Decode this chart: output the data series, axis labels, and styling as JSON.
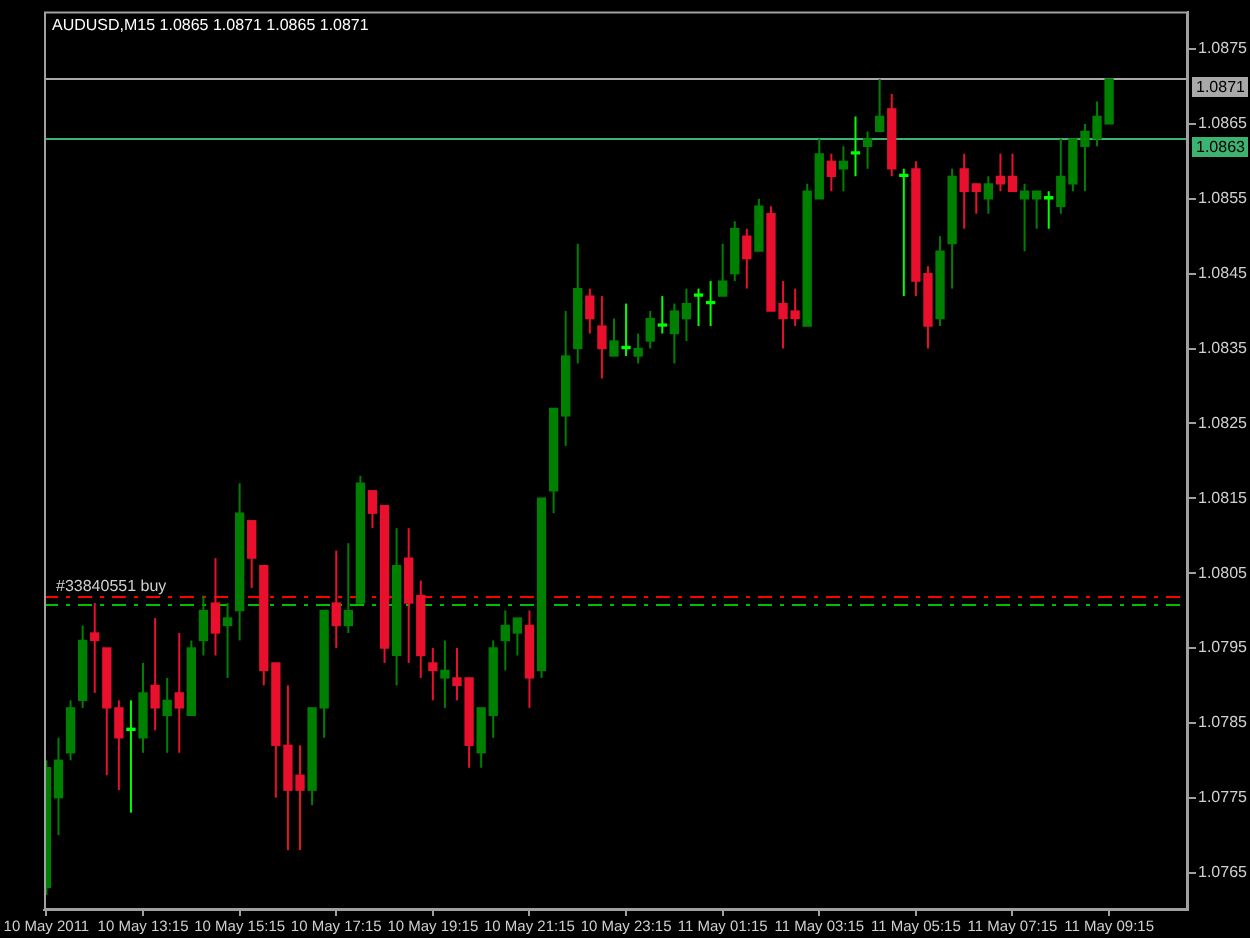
{
  "chart_data": {
    "type": "candlestick",
    "title": "AUDUSD,M15 1.0865 1.0871 1.0865 1.0871",
    "x": [
      "2011-05-10T11:15",
      "2011-05-10T11:30",
      "2011-05-10T11:45",
      "2011-05-10T12:00",
      "2011-05-10T12:15",
      "2011-05-10T12:30",
      "2011-05-10T12:45",
      "2011-05-10T13:00",
      "2011-05-10T13:15",
      "2011-05-10T13:30",
      "2011-05-10T13:45",
      "2011-05-10T14:00",
      "2011-05-10T14:15",
      "2011-05-10T14:30",
      "2011-05-10T14:45",
      "2011-05-10T15:00",
      "2011-05-10T15:15",
      "2011-05-10T15:30",
      "2011-05-10T15:45",
      "2011-05-10T16:00",
      "2011-05-10T16:15",
      "2011-05-10T16:30",
      "2011-05-10T16:45",
      "2011-05-10T17:00",
      "2011-05-10T17:15",
      "2011-05-10T17:30",
      "2011-05-10T17:45",
      "2011-05-10T18:00",
      "2011-05-10T18:15",
      "2011-05-10T18:30",
      "2011-05-10T18:45",
      "2011-05-10T19:00",
      "2011-05-10T19:15",
      "2011-05-10T19:30",
      "2011-05-10T19:45",
      "2011-05-10T20:00",
      "2011-05-10T20:15",
      "2011-05-10T20:30",
      "2011-05-10T20:45",
      "2011-05-10T21:00",
      "2011-05-10T21:15",
      "2011-05-10T21:30",
      "2011-05-10T21:45",
      "2011-05-10T22:00",
      "2011-05-10T22:15",
      "2011-05-10T22:30",
      "2011-05-10T22:45",
      "2011-05-10T23:00",
      "2011-05-10T23:15",
      "2011-05-10T23:30",
      "2011-05-10T23:45",
      "2011-05-11T00:00",
      "2011-05-11T00:15",
      "2011-05-11T00:30",
      "2011-05-11T00:45",
      "2011-05-11T01:00",
      "2011-05-11T01:15",
      "2011-05-11T01:30",
      "2011-05-11T01:45",
      "2011-05-11T02:00",
      "2011-05-11T02:15",
      "2011-05-11T02:30",
      "2011-05-11T02:45",
      "2011-05-11T03:00",
      "2011-05-11T03:15",
      "2011-05-11T03:30",
      "2011-05-11T03:45",
      "2011-05-11T04:00",
      "2011-05-11T04:15",
      "2011-05-11T04:30",
      "2011-05-11T04:45",
      "2011-05-11T05:00",
      "2011-05-11T05:15",
      "2011-05-11T05:30",
      "2011-05-11T05:45",
      "2011-05-11T06:00",
      "2011-05-11T06:15",
      "2011-05-11T06:30",
      "2011-05-11T06:45",
      "2011-05-11T07:00",
      "2011-05-11T07:15",
      "2011-05-11T07:30",
      "2011-05-11T07:45",
      "2011-05-11T08:00",
      "2011-05-11T08:15",
      "2011-05-11T08:30",
      "2011-05-11T08:45",
      "2011-05-11T09:00",
      "2011-05-11T09:15"
    ],
    "ohlc": [
      [
        1.0763,
        1.078,
        1.0762,
        1.0779
      ],
      [
        1.0775,
        1.0783,
        1.077,
        1.078
      ],
      [
        1.0781,
        1.0788,
        1.078,
        1.0787
      ],
      [
        1.0788,
        1.0798,
        1.0787,
        1.0796
      ],
      [
        1.0797,
        1.0801,
        1.0789,
        1.0796
      ],
      [
        1.0795,
        1.0795,
        1.0778,
        1.0787
      ],
      [
        1.0787,
        1.0788,
        1.0776,
        1.0783
      ],
      [
        1.0784,
        1.0788,
        1.0773,
        1.0784
      ],
      [
        1.0783,
        1.0793,
        1.0781,
        1.0789
      ],
      [
        1.079,
        1.0799,
        1.0784,
        1.0787
      ],
      [
        1.0786,
        1.0791,
        1.0781,
        1.0788
      ],
      [
        1.0789,
        1.0797,
        1.0781,
        1.0787
      ],
      [
        1.0786,
        1.0796,
        1.0786,
        1.0795
      ],
      [
        1.0796,
        1.0802,
        1.0794,
        1.08
      ],
      [
        1.0801,
        1.0807,
        1.0794,
        1.0797
      ],
      [
        1.0798,
        1.0801,
        1.0791,
        1.0799
      ],
      [
        1.08,
        1.0817,
        1.0796,
        1.0813
      ],
      [
        1.0812,
        1.0812,
        1.0803,
        1.0807
      ],
      [
        1.0806,
        1.0806,
        1.079,
        1.0792
      ],
      [
        1.0793,
        1.0793,
        1.0775,
        1.0782
      ],
      [
        1.0782,
        1.079,
        1.0768,
        1.0776
      ],
      [
        1.0778,
        1.0782,
        1.0768,
        1.0776
      ],
      [
        1.0776,
        1.0787,
        1.0774,
        1.0787
      ],
      [
        1.0787,
        1.08,
        1.0783,
        1.08
      ],
      [
        1.0801,
        1.0808,
        1.0795,
        1.0798
      ],
      [
        1.0798,
        1.0809,
        1.0797,
        1.08
      ],
      [
        1.0801,
        1.0818,
        1.0801,
        1.0817
      ],
      [
        1.0816,
        1.0816,
        1.0811,
        1.0813
      ],
      [
        1.0814,
        1.0814,
        1.0793,
        1.0795
      ],
      [
        1.0794,
        1.0811,
        1.079,
        1.0806
      ],
      [
        1.0807,
        1.0811,
        1.0793,
        1.0801
      ],
      [
        1.0802,
        1.0804,
        1.0791,
        1.0794
      ],
      [
        1.0793,
        1.0795,
        1.0788,
        1.0792
      ],
      [
        1.0791,
        1.0796,
        1.0787,
        1.0792
      ],
      [
        1.0791,
        1.0795,
        1.0788,
        1.079
      ],
      [
        1.0791,
        1.0791,
        1.0779,
        1.0782
      ],
      [
        1.0781,
        1.0787,
        1.0779,
        1.0787
      ],
      [
        1.0786,
        1.0796,
        1.0783,
        1.0795
      ],
      [
        1.0796,
        1.08,
        1.0792,
        1.0798
      ],
      [
        1.0797,
        1.0799,
        1.0794,
        1.0799
      ],
      [
        1.0798,
        1.08,
        1.0787,
        1.0791
      ],
      [
        1.0792,
        1.0815,
        1.0791,
        1.0815
      ],
      [
        1.0816,
        1.0827,
        1.0813,
        1.0827
      ],
      [
        1.0826,
        1.084,
        1.0822,
        1.0834
      ],
      [
        1.0835,
        1.0849,
        1.0833,
        1.0843
      ],
      [
        1.0842,
        1.0843,
        1.0837,
        1.0839
      ],
      [
        1.0838,
        1.0842,
        1.0831,
        1.0835
      ],
      [
        1.0834,
        1.0839,
        1.0834,
        1.0836
      ],
      [
        1.0835,
        1.0841,
        1.0834,
        1.0835
      ],
      [
        1.0834,
        1.0837,
        1.0833,
        1.0835
      ],
      [
        1.0836,
        1.084,
        1.0835,
        1.0839
      ],
      [
        1.0838,
        1.0842,
        1.0837,
        1.0838
      ],
      [
        1.0837,
        1.0841,
        1.0833,
        1.084
      ],
      [
        1.0839,
        1.0843,
        1.0836,
        1.0841
      ],
      [
        1.0842,
        1.0843,
        1.0838,
        1.0842
      ],
      [
        1.0841,
        1.0844,
        1.0838,
        1.0841
      ],
      [
        1.0842,
        1.0849,
        1.0842,
        1.0844
      ],
      [
        1.0845,
        1.0852,
        1.0844,
        1.0851
      ],
      [
        1.085,
        1.0851,
        1.0843,
        1.0847
      ],
      [
        1.0848,
        1.0855,
        1.0848,
        1.0854
      ],
      [
        1.0853,
        1.0854,
        1.084,
        1.084
      ],
      [
        1.0841,
        1.0844,
        1.0835,
        1.0839
      ],
      [
        1.084,
        1.0843,
        1.0838,
        1.0839
      ],
      [
        1.0838,
        1.0857,
        1.0838,
        1.0856
      ],
      [
        1.0855,
        1.0863,
        1.0855,
        1.0861
      ],
      [
        1.086,
        1.0861,
        1.0856,
        1.0858
      ],
      [
        1.0859,
        1.0862,
        1.0856,
        1.086
      ],
      [
        1.0861,
        1.0866,
        1.0858,
        1.0861
      ],
      [
        1.0862,
        1.0864,
        1.0859,
        1.0863
      ],
      [
        1.0864,
        1.0871,
        1.0864,
        1.0866
      ],
      [
        1.0867,
        1.0869,
        1.0858,
        1.0859
      ],
      [
        1.0858,
        1.0859,
        1.0842,
        1.0858
      ],
      [
        1.0859,
        1.086,
        1.0842,
        1.0844
      ],
      [
        1.0845,
        1.0846,
        1.0835,
        1.0838
      ],
      [
        1.0839,
        1.085,
        1.0838,
        1.0848
      ],
      [
        1.0849,
        1.0859,
        1.0843,
        1.0858
      ],
      [
        1.0859,
        1.0861,
        1.0851,
        1.0856
      ],
      [
        1.0857,
        1.0857,
        1.0853,
        1.0856
      ],
      [
        1.0855,
        1.0858,
        1.0853,
        1.0857
      ],
      [
        1.0858,
        1.0861,
        1.0856,
        1.0857
      ],
      [
        1.0858,
        1.0861,
        1.0856,
        1.0856
      ],
      [
        1.0855,
        1.0857,
        1.0848,
        1.0856
      ],
      [
        1.0855,
        1.0856,
        1.0851,
        1.0856
      ],
      [
        1.0855,
        1.0856,
        1.0851,
        1.0855
      ],
      [
        1.0854,
        1.0863,
        1.0853,
        1.0858
      ],
      [
        1.0857,
        1.0863,
        1.0856,
        1.0863
      ],
      [
        1.0862,
        1.0865,
        1.0856,
        1.0864
      ],
      [
        1.0863,
        1.0868,
        1.0862,
        1.0866
      ],
      [
        1.0865,
        1.0871,
        1.0865,
        1.0871
      ]
    ],
    "colors": [
      "#008000",
      "#008000",
      "#008000",
      "#008000",
      "#e8102c",
      "#e8102c",
      "#e8102c",
      "#00ff00",
      "#008000",
      "#e8102c",
      "#008000",
      "#e8102c",
      "#008000",
      "#008000",
      "#e8102c",
      "#008000",
      "#008000",
      "#e8102c",
      "#e8102c",
      "#e8102c",
      "#e8102c",
      "#e8102c",
      "#008000",
      "#008000",
      "#e8102c",
      "#008000",
      "#008000",
      "#e8102c",
      "#e8102c",
      "#008000",
      "#e8102c",
      "#e8102c",
      "#e8102c",
      "#008000",
      "#e8102c",
      "#e8102c",
      "#008000",
      "#008000",
      "#008000",
      "#008000",
      "#e8102c",
      "#008000",
      "#008000",
      "#008000",
      "#008000",
      "#e8102c",
      "#e8102c",
      "#008000",
      "#00ff00",
      "#008000",
      "#008000",
      "#00ff00",
      "#008000",
      "#008000",
      "#00ff00",
      "#00ff00",
      "#008000",
      "#008000",
      "#e8102c",
      "#008000",
      "#e8102c",
      "#e8102c",
      "#e8102c",
      "#008000",
      "#008000",
      "#e8102c",
      "#008000",
      "#00ff00",
      "#008000",
      "#008000",
      "#e8102c",
      "#00ff00",
      "#e8102c",
      "#e8102c",
      "#008000",
      "#008000",
      "#e8102c",
      "#e8102c",
      "#008000",
      "#e8102c",
      "#e8102c",
      "#008000",
      "#008000",
      "#00ff00",
      "#008000",
      "#008000",
      "#008000",
      "#008000",
      "#008000"
    ],
    "xlim": [
      "2011-05-10T11:12",
      "2011-05-11T10:53"
    ],
    "xticks": [
      {
        "value": "2011-05-10T11:15",
        "label": "10 May 2011"
      },
      {
        "value": "2011-05-10T13:15",
        "label": "10 May 13:15"
      },
      {
        "value": "2011-05-10T15:15",
        "label": "10 May 15:15"
      },
      {
        "value": "2011-05-10T17:15",
        "label": "10 May 17:15"
      },
      {
        "value": "2011-05-10T19:15",
        "label": "10 May 19:15"
      },
      {
        "value": "2011-05-10T21:15",
        "label": "10 May 21:15"
      },
      {
        "value": "2011-05-10T23:15",
        "label": "10 May 23:15"
      },
      {
        "value": "2011-05-11T01:15",
        "label": "11 May 01:15"
      },
      {
        "value": "2011-05-11T03:15",
        "label": "11 May 03:15"
      },
      {
        "value": "2011-05-11T05:15",
        "label": "11 May 05:15"
      },
      {
        "value": "2011-05-11T07:15",
        "label": "11 May 07:15"
      },
      {
        "value": "2011-05-11T09:15",
        "label": "11 May 09:15"
      }
    ],
    "ylim": [
      1.076,
      1.088
    ],
    "yticks": [
      1.0765,
      1.0775,
      1.0785,
      1.0795,
      1.0805,
      1.0815,
      1.0825,
      1.0835,
      1.0845,
      1.0855,
      1.0865,
      1.0875
    ],
    "ref_lines": [
      {
        "axis": "y",
        "value": 1.0871,
        "label": "1.0871",
        "color": "#a9a9a9"
      },
      {
        "axis": "y",
        "value": 1.0863,
        "label": "1.0863",
        "color": "#3cb371"
      },
      {
        "axis": "y",
        "value": 1.0802,
        "label": "#33840551 buy",
        "color": "#ff0000",
        "line_style": "dashed"
      },
      {
        "axis": "y",
        "value": 1.0801,
        "color": "#00c000",
        "line_style": "dashed"
      }
    ]
  }
}
